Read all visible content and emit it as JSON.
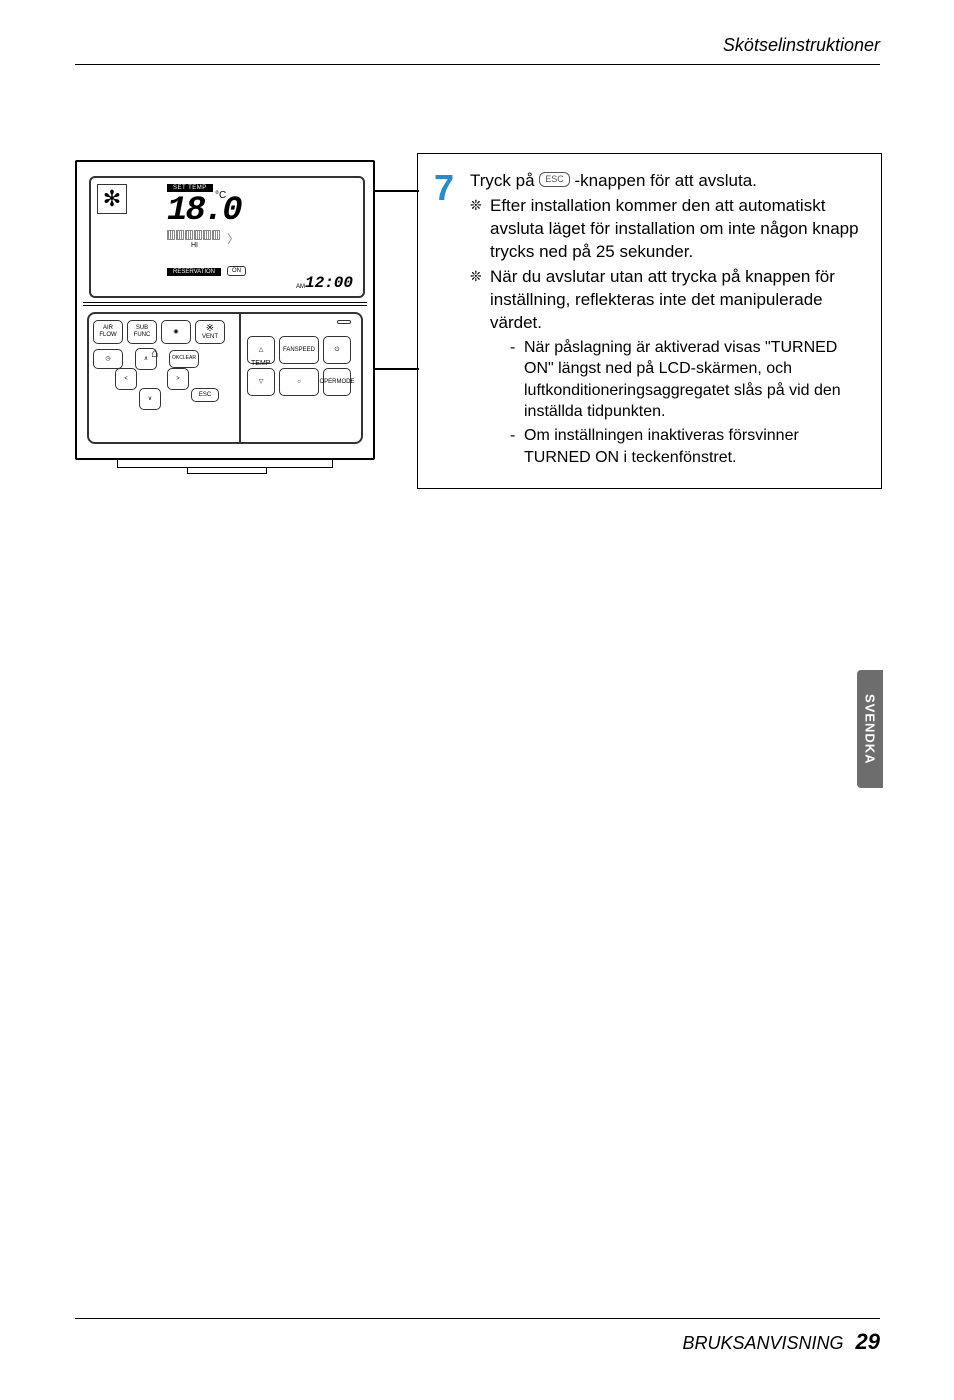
{
  "header": {
    "title": "Skötselinstruktioner"
  },
  "remote": {
    "lcd": {
      "set_temp_label": "SET TEMP",
      "temp_value": "18.0",
      "temp_unit": "°C",
      "hi": "HI",
      "reservation": "RESERVATION",
      "on": "ON",
      "am": "AM",
      "clock": "12:00"
    },
    "buttons": {
      "air_flow": "AIR\nFLOW",
      "sub_func": "SUB\nFUNC",
      "vent": "VENT",
      "ok_clear": "OK\nCLEAR",
      "esc": "ESC",
      "fan_speed": "FAN\nSPEED",
      "oper_mode": "OPER\nMODE",
      "temp": "TEMP"
    }
  },
  "instruction": {
    "step_number": "7",
    "line1_pre": "Tryck på ",
    "line1_chip": "ESC",
    "line1_post": " -knappen för att avsluta.",
    "sub1": "Efter installation kommer den att automatiskt avsluta läget för installation om inte någon knapp trycks ned på 25 sekunder.",
    "sub2": "När du avslutar utan att trycka på knappen för inställning, reflekteras inte det manipulerade värdet.",
    "dash1": "När påslagning är aktiverad visas \"TURNED ON\" längst ned på LCD-skärmen, och luftkonditioneringsaggregatet slås på vid den inställda tidpunkten.",
    "dash2": "Om inställningen inaktiveras försvinner TURNED ON i teckenfönstret."
  },
  "side_tab": "SVENDKA",
  "footer": {
    "title": "BRUKSANVISNING",
    "page": "29"
  },
  "colors": {
    "step_number": "#2a8aca",
    "tab_bg": "#6d6d6d",
    "text": "#000000",
    "border": "#000000"
  }
}
